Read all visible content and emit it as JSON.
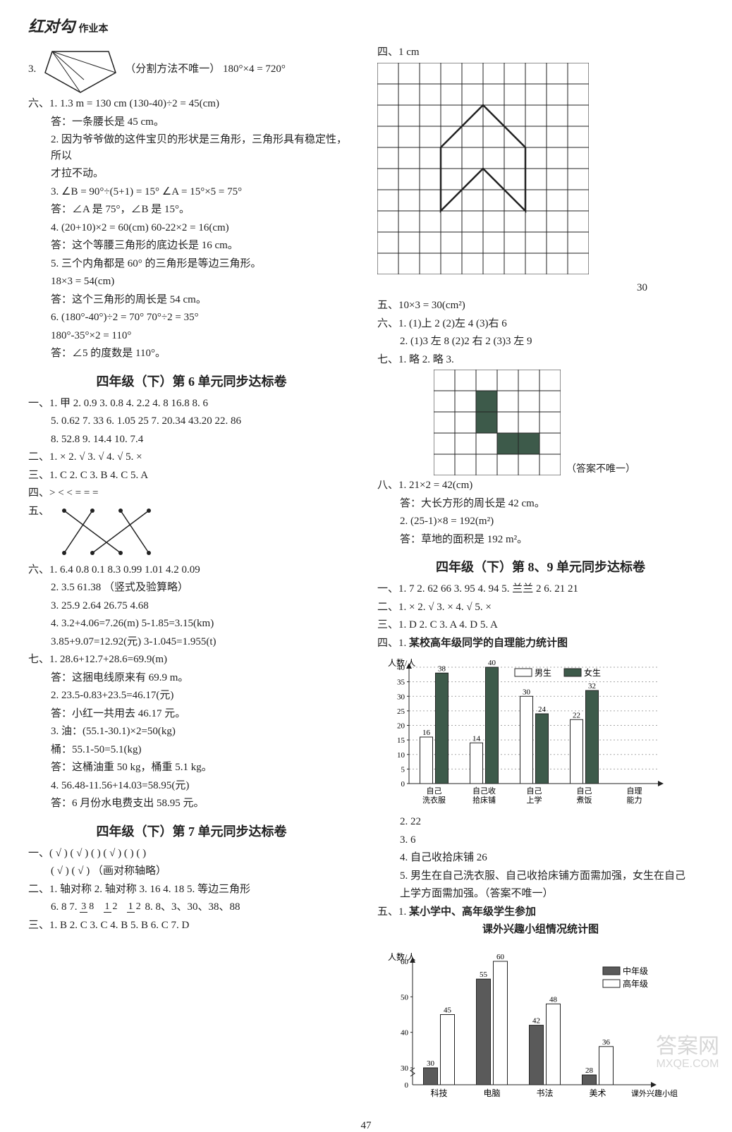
{
  "header": {
    "main": "红对勾",
    "sub": "作业本"
  },
  "left": {
    "q3_note": "（分割方法不唯一）  180°×4 = 720°",
    "six": {
      "label": "六、",
      "l1a": "1. 1.3 m = 130 cm   (130-40)÷2 = 45(cm)",
      "l1b": "答：一条腰长是 45 cm。",
      "l2a": "2. 因为爷爷做的这件宝贝的形状是三角形，三角形具有稳定性，所以",
      "l2b": "才拉不动。",
      "l3a": "3. ∠B = 90°÷(5+1) = 15°   ∠A = 15°×5 = 75°",
      "l3b": "答：∠A 是 75°，∠B 是 15°。",
      "l4a": "4. (20+10)×2 = 60(cm)   60-22×2 = 16(cm)",
      "l4b": "答：这个等腰三角形的底边长是 16 cm。",
      "l5a": "5. 三个内角都是 60° 的三角形是等边三角形。",
      "l5b": "18×3 = 54(cm)",
      "l5c": "答：这个三角形的周长是 54 cm。",
      "l6a": "6. (180°-40°)÷2 = 70°   70°÷2 = 35°",
      "l6b": "180°-35°×2 = 110°",
      "l6c": "答：∠5 的度数是 110°。"
    },
    "unit6_title": "四年级（下）第 6 单元同步达标卷",
    "u6": {
      "yi_a": "一、1. 甲   2. 0.9   3. 0.8   4. 2.2   4. 8   16.8   8. 6",
      "yi_b": "5. 0.62   7. 33   6. 1.05   25   7. 20.34   43.20   22. 86",
      "yi_c": "8. 52.8   9. 14.4   10. 7.4",
      "er": "二、1. ×   2. √   3. √   4. √   5. ×",
      "san": "三、1. C   2. C   3. B   4. C   5. A",
      "si": "四、>   <   <   =   =   =",
      "wu_label": "五、",
      "liu_a": "六、1. 6.4   0.8   0.1   8.3   0.99   1.01   4.2   0.09",
      "liu_b": "2. 3.5   61.38   （竖式及验算略）",
      "liu_c": "3. 25.9   2.64   26.75   4.68",
      "liu_d": "4. 3.2+4.06=7.26(m)   5-1.85=3.15(km)",
      "liu_e": "3.85+9.07=12.92(元)   3-1.045=1.955(t)",
      "qi_a": "七、1. 28.6+12.7+28.6=69.9(m)",
      "qi_a2": "答：这捆电线原来有 69.9 m。",
      "qi_b": "2. 23.5-0.83+23.5=46.17(元)",
      "qi_b2": "答：小红一共用去 46.17 元。",
      "qi_c": "3. 油：(55.1-30.1)×2=50(kg)",
      "qi_c2": "桶：55.1-50=5.1(kg)",
      "qi_c3": "答：这桶油重 50 kg，桶重 5.1 kg。",
      "qi_d": "4. 56.48-11.56+14.03=58.95(元)",
      "qi_d2": "答：6 月份水电费支出 58.95 元。"
    },
    "unit7_title": "四年级（下）第 7 单元同步达标卷",
    "u7": {
      "yi_a": "一、( √ )   ( √ )   (     )   ( √ )   (     )   (     )",
      "yi_b": "( √ )   ( √ )   （画对称轴略）",
      "er_a": "二、1. 轴对称   2. 轴对称   3. 16   4. 18   5. 等边三角形",
      "er_b_before": "6. 8   7. ",
      "er_b_after": "   8. 8、3、30、38、88",
      "san": "三、1. B   2. C   3. C   4. B   5. B   6. C   7. D"
    }
  },
  "right": {
    "si_label": "四、1 cm",
    "grid_paths": {
      "cells": 10,
      "poly": [
        [
          3,
          4
        ],
        [
          5,
          2
        ],
        [
          7,
          4
        ],
        [
          7,
          7
        ],
        [
          5,
          5
        ],
        [
          3,
          7
        ]
      ]
    },
    "grid_caption": "30",
    "wu": "五、10×3 = 30(cm²)",
    "liu_a": "六、1. (1)上  2   (2)左  4   (3)右  6",
    "liu_b": "2. (1)3  左  8   (2)2  右  2   (3)3  左  9",
    "qi_label": "七、1. 略   2. 略   3.",
    "qi_grid_note": "（答案不唯一）",
    "ba_a": "八、1. 21×2 = 42(cm)",
    "ba_a2": "答：大长方形的周长是 42 cm。",
    "ba_b": "2. (25-1)×8 = 192(m²)",
    "ba_b2": "答：草地的面积是 192 m²。",
    "unit89_title": "四年级（下）第 8、9 单元同步达标卷",
    "u89": {
      "yi": "一、1. 7   2. 62   66   3. 95   4. 94   5. 兰兰   2   6. 21   21",
      "er": "二、1. ×   2. √   3. ×   4. √   5. ×",
      "san": "三、1. D   2. C   3. A   4. D   5. A",
      "si_label": "四、1.",
      "chart1_title": "某校高年级同学的自理能力统计图",
      "chart1": {
        "ylabel": "人数/人",
        "ymax": 40,
        "ytick": 5,
        "categories": [
          "自己\n洗衣服",
          "自己收\n拾床铺",
          "自己\n上学",
          "自己\n煮饭",
          "自理\n能力"
        ],
        "legend_boy": "男生",
        "legend_girl": "女生",
        "boy_vals": [
          16,
          14,
          30,
          22,
          null
        ],
        "girl_vals": [
          38,
          40,
          24,
          32,
          null
        ],
        "boy_color": "#ffffff",
        "girl_color": "#3d5a4a",
        "border": "#222",
        "label_fontsize": 11
      },
      "si_2": "2. 22",
      "si_3": "3. 6",
      "si_4": "4. 自己收拾床铺   26",
      "si_5a": "5. 男生在自己洗衣服、自己收拾床铺方面需加强，女生在自己",
      "si_5b": "上学方面需加强。（答案不唯一）",
      "wu_label": "五、1.",
      "chart2_title_a": "某小学中、高年级学生参加",
      "chart2_title_b": "课外兴趣小组情况统计图",
      "chart2": {
        "ylabel": "人数/人",
        "ymax": 60,
        "ytick": 10,
        "ymin_tick": 30,
        "categories": [
          "科技",
          "电脑",
          "书法",
          "美术"
        ],
        "xlabel": "课外兴趣小组",
        "legend_mid": "中年级",
        "legend_high": "高年级",
        "mid_vals": [
          30,
          55,
          42,
          28
        ],
        "high_vals": [
          45,
          60,
          48,
          36
        ],
        "mid_color": "#5a5a5a",
        "high_color": "#ffffff",
        "border": "#222",
        "label_fontsize": 11
      }
    }
  },
  "fractions": {
    "a_n": "3",
    "a_d": "8",
    "b_n": "1",
    "b_d": "2",
    "c_n": "1",
    "c_d": "2"
  },
  "page_num": "47",
  "watermark_a": "答案网",
  "watermark_b": "MXQE.COM"
}
